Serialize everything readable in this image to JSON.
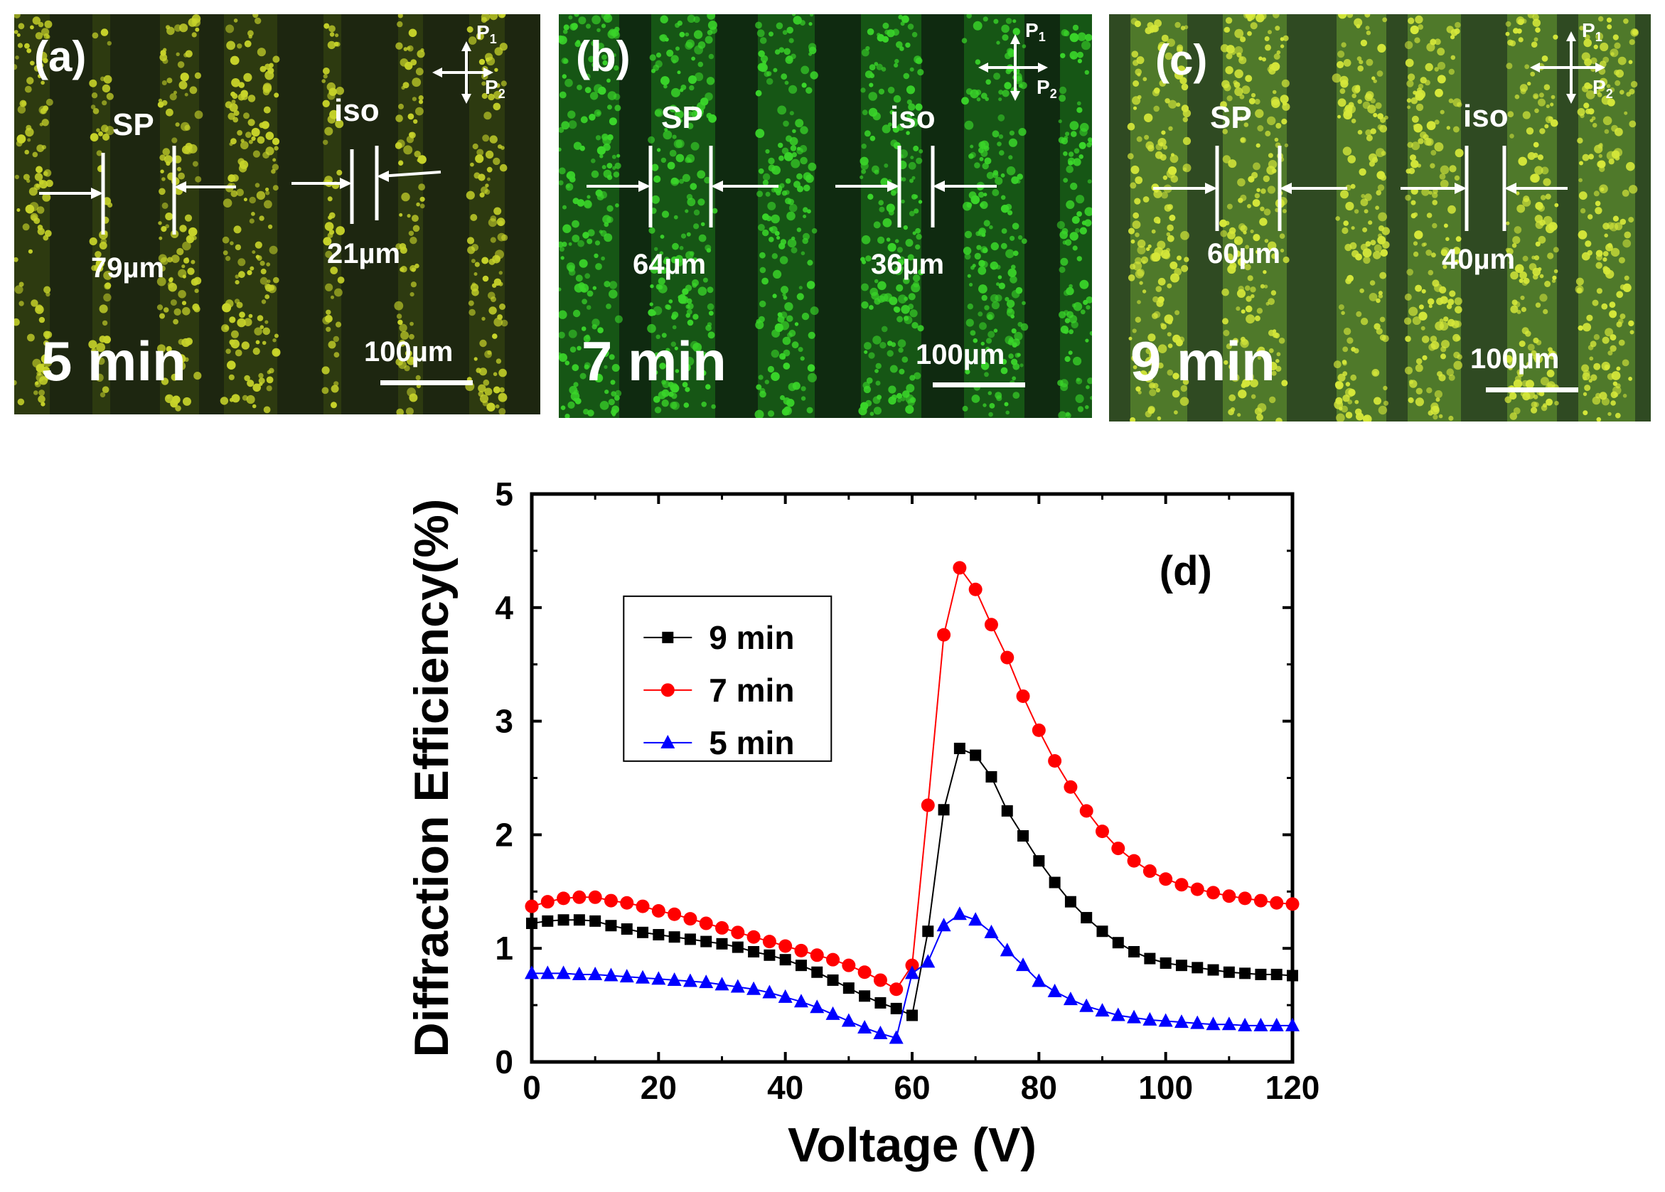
{
  "panels": [
    {
      "label": "(a)",
      "time": "5 min",
      "sp_label": "SP",
      "iso_label": "iso",
      "sp_width": "79µm",
      "iso_width": "21µm",
      "scalebar": "100µm",
      "polarizer_p1": "P",
      "polarizer_p1_sub": "1",
      "polarizer_p2": "P",
      "polarizer_p2_sub": "2",
      "bg_color": "#1d2610",
      "dot_color": "#c8d42a",
      "stripe_color": "#3a4a10"
    },
    {
      "label": "(b)",
      "time": "7 min",
      "sp_label": "SP",
      "iso_label": "iso",
      "sp_width": "64µm",
      "iso_width": "36µm",
      "scalebar": "100µm",
      "polarizer_p1": "P",
      "polarizer_p1_sub": "1",
      "polarizer_p2": "P",
      "polarizer_p2_sub": "2",
      "bg_color": "#0f2a10",
      "dot_color": "#3ad62a",
      "stripe_color": "#1d7a1a"
    },
    {
      "label": "(c)",
      "time": "9 min",
      "sp_label": "SP",
      "iso_label": "iso",
      "sp_width": "60µm",
      "iso_width": "40µm",
      "scalebar": "100µm",
      "polarizer_p1": "P",
      "polarizer_p1_sub": "1",
      "polarizer_p2": "P",
      "polarizer_p2_sub": "2",
      "bg_color": "#2f4a22",
      "dot_color": "#d6e83a",
      "stripe_color": "#6aa032"
    }
  ],
  "chart_data": {
    "type": "line",
    "panel_label": "(d)",
    "xlabel": "Voltage (V)",
    "ylabel": "Diffraction Efficiency(%)",
    "xlim": [
      0,
      120
    ],
    "ylim": [
      0,
      5
    ],
    "xticks": [
      0,
      20,
      40,
      60,
      80,
      100,
      120
    ],
    "yticks": [
      0,
      1,
      2,
      3,
      4,
      5
    ],
    "legend_position": "upper-left",
    "series": [
      {
        "name": "9 min",
        "color": "#000000",
        "marker": "square",
        "x": [
          0,
          2.5,
          5,
          7.5,
          10,
          12.5,
          15,
          17.5,
          20,
          22.5,
          25,
          27.5,
          30,
          32.5,
          35,
          37.5,
          40,
          42.5,
          45,
          47.5,
          50,
          52.5,
          55,
          57.5,
          60,
          62.5,
          65,
          67.5,
          70,
          72.5,
          75,
          77.5,
          80,
          82.5,
          85,
          87.5,
          90,
          92.5,
          95,
          97.5,
          100,
          102.5,
          105,
          107.5,
          110,
          112.5,
          115,
          117.5,
          120
        ],
        "y": [
          1.22,
          1.24,
          1.25,
          1.25,
          1.24,
          1.2,
          1.17,
          1.14,
          1.12,
          1.1,
          1.08,
          1.06,
          1.04,
          1.01,
          0.97,
          0.94,
          0.9,
          0.85,
          0.79,
          0.72,
          0.65,
          0.58,
          0.52,
          0.47,
          0.41,
          1.15,
          2.22,
          2.76,
          2.7,
          2.51,
          2.21,
          1.99,
          1.77,
          1.58,
          1.41,
          1.27,
          1.15,
          1.05,
          0.97,
          0.91,
          0.87,
          0.85,
          0.83,
          0.81,
          0.79,
          0.78,
          0.77,
          0.77,
          0.76
        ]
      },
      {
        "name": "7 min",
        "color": "#ff0000",
        "marker": "circle",
        "x": [
          0,
          2.5,
          5,
          7.5,
          10,
          12.5,
          15,
          17.5,
          20,
          22.5,
          25,
          27.5,
          30,
          32.5,
          35,
          37.5,
          40,
          42.5,
          45,
          47.5,
          50,
          52.5,
          55,
          57.5,
          60,
          62.5,
          65,
          67.5,
          70,
          72.5,
          75,
          77.5,
          80,
          82.5,
          85,
          87.5,
          90,
          92.5,
          95,
          97.5,
          100,
          102.5,
          105,
          107.5,
          110,
          112.5,
          115,
          117.5,
          120
        ],
        "y": [
          1.37,
          1.41,
          1.44,
          1.45,
          1.45,
          1.42,
          1.4,
          1.37,
          1.33,
          1.3,
          1.26,
          1.22,
          1.18,
          1.14,
          1.1,
          1.06,
          1.02,
          0.98,
          0.94,
          0.9,
          0.85,
          0.79,
          0.72,
          0.64,
          0.85,
          2.26,
          3.76,
          4.35,
          4.16,
          3.85,
          3.56,
          3.22,
          2.92,
          2.65,
          2.42,
          2.21,
          2.03,
          1.88,
          1.77,
          1.68,
          1.61,
          1.56,
          1.52,
          1.49,
          1.46,
          1.44,
          1.42,
          1.4,
          1.39
        ]
      },
      {
        "name": "5 min",
        "color": "#0000ff",
        "marker": "triangle",
        "x": [
          0,
          2.5,
          5,
          7.5,
          10,
          12.5,
          15,
          17.5,
          20,
          22.5,
          25,
          27.5,
          30,
          32.5,
          35,
          37.5,
          40,
          42.5,
          45,
          47.5,
          50,
          52.5,
          55,
          57.5,
          60,
          62.5,
          65,
          67.5,
          70,
          72.5,
          75,
          77.5,
          80,
          82.5,
          85,
          87.5,
          90,
          92.5,
          95,
          97.5,
          100,
          102.5,
          105,
          107.5,
          110,
          112.5,
          115,
          117.5,
          120
        ],
        "y": [
          0.78,
          0.78,
          0.78,
          0.77,
          0.77,
          0.76,
          0.75,
          0.74,
          0.73,
          0.72,
          0.71,
          0.7,
          0.68,
          0.66,
          0.64,
          0.61,
          0.57,
          0.53,
          0.48,
          0.42,
          0.36,
          0.3,
          0.25,
          0.21,
          0.78,
          0.88,
          1.2,
          1.3,
          1.25,
          1.14,
          0.98,
          0.85,
          0.71,
          0.62,
          0.55,
          0.49,
          0.45,
          0.41,
          0.39,
          0.37,
          0.36,
          0.35,
          0.34,
          0.33,
          0.33,
          0.32,
          0.32,
          0.32,
          0.32
        ]
      }
    ]
  }
}
